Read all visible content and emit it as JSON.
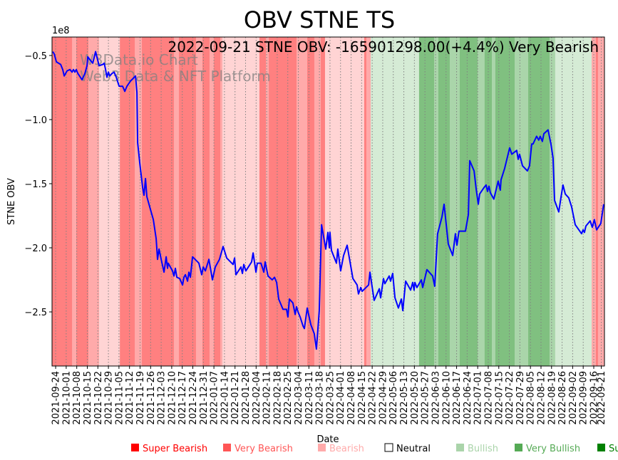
{
  "chart_data": {
    "type": "line",
    "title": "OBV STNE TS",
    "annotation": "2022-09-21 STNE OBV: -165901298.00(+4.4%) Very Bearish",
    "watermark": [
      "W3Data.io Chart",
      "Web3 Data & NFT Platform"
    ],
    "xlabel": "Date",
    "ylabel": "STNE OBV",
    "y_multiplier_label": "1e8",
    "x_units": "days since 2021-09-24",
    "y_units": "1e8",
    "xlim": [
      -2.4,
      364.1
    ],
    "ylim": [
      -2.922,
      -0.356
    ],
    "grid": "vertical dotted at x ticks",
    "yticks": [
      -0.5,
      -1.0,
      -1.5,
      -2.0,
      -2.5
    ],
    "ytick_labels": [
      "−0.5",
      "−1.0",
      "−1.5",
      "−2.0",
      "−2.5"
    ],
    "xticks": [
      0,
      7,
      14,
      21,
      28,
      35,
      42,
      49,
      56,
      63,
      70,
      77,
      84,
      91,
      98,
      105,
      112,
      119,
      126,
      133,
      140,
      147,
      154,
      161,
      168,
      175,
      182,
      189,
      196,
      203,
      210,
      217,
      224,
      231,
      238,
      245,
      252,
      259,
      266,
      273,
      280,
      287,
      294,
      301,
      308,
      315,
      322,
      329,
      336,
      343,
      350,
      357,
      362
    ],
    "xtick_labels": [
      "2021-09-24",
      "2021-10-01",
      "2021-10-08",
      "2021-10-15",
      "2021-10-22",
      "2021-10-29",
      "2021-11-05",
      "2021-11-12",
      "2021-11-19",
      "2021-11-26",
      "2021-12-03",
      "2021-12-10",
      "2021-12-17",
      "2021-12-24",
      "2021-12-31",
      "2022-01-07",
      "2022-01-14",
      "2022-01-21",
      "2022-01-28",
      "2022-02-04",
      "2022-02-11",
      "2022-02-18",
      "2022-02-25",
      "2022-03-04",
      "2022-03-11",
      "2022-03-18",
      "2022-03-25",
      "2022-04-01",
      "2022-04-08",
      "2022-04-15",
      "2022-04-22",
      "2022-04-29",
      "2022-05-06",
      "2022-05-13",
      "2022-05-20",
      "2022-05-27",
      "2022-06-03",
      "2022-06-10",
      "2022-06-17",
      "2022-06-24",
      "2022-07-01",
      "2022-07-08",
      "2022-07-15",
      "2022-07-22",
      "2022-07-29",
      "2022-08-05",
      "2022-08-12",
      "2022-08-19",
      "2022-08-26",
      "2022-09-02",
      "2022-09-09",
      "2022-09-16",
      "2022-09-21"
    ],
    "series": [
      {
        "name": "STNE OBV",
        "color": "#0000ff",
        "points": [
          [
            -1.9,
            -0.47
          ],
          [
            -0.9,
            -0.49
          ],
          [
            0.5,
            -0.55
          ],
          [
            3.3,
            -0.57
          ],
          [
            4.7,
            -0.61
          ],
          [
            5.7,
            -0.66
          ],
          [
            7.6,
            -0.62
          ],
          [
            9.5,
            -0.61
          ],
          [
            10.9,
            -0.63
          ],
          [
            11.8,
            -0.61
          ],
          [
            12.8,
            -0.63
          ],
          [
            13.7,
            -0.61
          ],
          [
            14.7,
            -0.64
          ],
          [
            17.5,
            -0.69
          ],
          [
            19.4,
            -0.64
          ],
          [
            20.8,
            -0.58
          ],
          [
            21.3,
            -0.51
          ],
          [
            23.2,
            -0.54
          ],
          [
            24.6,
            -0.56
          ],
          [
            26.5,
            -0.47
          ],
          [
            28.8,
            -0.58
          ],
          [
            31.2,
            -0.57
          ],
          [
            32.2,
            -0.56
          ],
          [
            33.1,
            -0.61
          ],
          [
            34.0,
            -0.67
          ],
          [
            35.0,
            -0.63
          ],
          [
            35.9,
            -0.66
          ],
          [
            37.4,
            -0.64
          ],
          [
            38.8,
            -0.63
          ],
          [
            40.2,
            -0.67
          ],
          [
            42.1,
            -0.74
          ],
          [
            44.4,
            -0.74
          ],
          [
            45.9,
            -0.78
          ],
          [
            47.3,
            -0.74
          ],
          [
            49.6,
            -0.7
          ],
          [
            53.0,
            -0.66
          ],
          [
            53.9,
            -0.79
          ],
          [
            54.4,
            -1.18
          ],
          [
            55.8,
            -1.34
          ],
          [
            56.7,
            -1.43
          ],
          [
            57.7,
            -1.53
          ],
          [
            58.6,
            -1.59
          ],
          [
            59.6,
            -1.46
          ],
          [
            60.5,
            -1.6
          ],
          [
            62.4,
            -1.68
          ],
          [
            64.8,
            -1.78
          ],
          [
            66.7,
            -1.93
          ],
          [
            67.6,
            -2.09
          ],
          [
            68.6,
            -2.01
          ],
          [
            70.0,
            -2.09
          ],
          [
            71.9,
            -2.19
          ],
          [
            73.3,
            -2.07
          ],
          [
            74.2,
            -2.16
          ],
          [
            74.7,
            -2.12
          ],
          [
            77.5,
            -2.18
          ],
          [
            78.5,
            -2.22
          ],
          [
            79.4,
            -2.16
          ],
          [
            80.4,
            -2.23
          ],
          [
            82.3,
            -2.24
          ],
          [
            84.2,
            -2.29
          ],
          [
            85.1,
            -2.23
          ],
          [
            86.1,
            -2.21
          ],
          [
            87.5,
            -2.26
          ],
          [
            88.4,
            -2.19
          ],
          [
            89.4,
            -2.23
          ],
          [
            90.8,
            -2.07
          ],
          [
            95.0,
            -2.12
          ],
          [
            96.9,
            -2.21
          ],
          [
            97.9,
            -2.15
          ],
          [
            99.3,
            -2.18
          ],
          [
            101.7,
            -2.09
          ],
          [
            104.0,
            -2.25
          ],
          [
            105.9,
            -2.15
          ],
          [
            108.7,
            -2.09
          ],
          [
            111.1,
            -1.99
          ],
          [
            113.5,
            -2.08
          ],
          [
            117.7,
            -2.13
          ],
          [
            118.7,
            -2.08
          ],
          [
            119.6,
            -2.21
          ],
          [
            122.9,
            -2.15
          ],
          [
            123.9,
            -2.2
          ],
          [
            124.8,
            -2.13
          ],
          [
            126.2,
            -2.18
          ],
          [
            130.0,
            -2.11
          ],
          [
            131.0,
            -2.04
          ],
          [
            132.9,
            -2.19
          ],
          [
            133.8,
            -2.12
          ],
          [
            136.2,
            -2.12
          ],
          [
            138.1,
            -2.19
          ],
          [
            139.0,
            -2.11
          ],
          [
            140.9,
            -2.22
          ],
          [
            143.7,
            -2.25
          ],
          [
            145.2,
            -2.23
          ],
          [
            146.6,
            -2.27
          ],
          [
            148.0,
            -2.4
          ],
          [
            150.8,
            -2.48
          ],
          [
            153.2,
            -2.48
          ],
          [
            154.1,
            -2.54
          ],
          [
            155.1,
            -2.4
          ],
          [
            157.4,
            -2.43
          ],
          [
            158.9,
            -2.52
          ],
          [
            159.8,
            -2.46
          ],
          [
            160.8,
            -2.5
          ],
          [
            162.2,
            -2.54
          ],
          [
            164.1,
            -2.61
          ],
          [
            165.0,
            -2.63
          ],
          [
            166.9,
            -2.47
          ],
          [
            169.3,
            -2.6
          ],
          [
            171.6,
            -2.67
          ],
          [
            173.0,
            -2.79
          ],
          [
            174.9,
            -2.49
          ],
          [
            176.4,
            -1.82
          ],
          [
            179.2,
            -2.01
          ],
          [
            180.6,
            -1.88
          ],
          [
            181.6,
            -2.0
          ],
          [
            182.0,
            -1.88
          ],
          [
            183.0,
            -2.02
          ],
          [
            186.3,
            -2.12
          ],
          [
            187.2,
            -2.01
          ],
          [
            189.1,
            -2.18
          ],
          [
            191.0,
            -2.06
          ],
          [
            193.4,
            -1.98
          ],
          [
            197.2,
            -2.24
          ],
          [
            200.0,
            -2.29
          ],
          [
            200.9,
            -2.36
          ],
          [
            202.4,
            -2.31
          ],
          [
            203.3,
            -2.34
          ],
          [
            207.6,
            -2.29
          ],
          [
            208.5,
            -2.19
          ],
          [
            211.3,
            -2.41
          ],
          [
            214.7,
            -2.32
          ],
          [
            215.6,
            -2.39
          ],
          [
            217.5,
            -2.24
          ],
          [
            218.4,
            -2.28
          ],
          [
            221.3,
            -2.22
          ],
          [
            222.2,
            -2.26
          ],
          [
            223.6,
            -2.2
          ],
          [
            225.1,
            -2.39
          ],
          [
            227.4,
            -2.47
          ],
          [
            229.3,
            -2.4
          ],
          [
            230.3,
            -2.49
          ],
          [
            232.2,
            -2.26
          ],
          [
            235.5,
            -2.33
          ],
          [
            236.9,
            -2.27
          ],
          [
            237.8,
            -2.33
          ],
          [
            238.3,
            -2.27
          ],
          [
            239.7,
            -2.31
          ],
          [
            242.6,
            -2.25
          ],
          [
            243.5,
            -2.31
          ],
          [
            246.3,
            -2.17
          ],
          [
            250.1,
            -2.22
          ],
          [
            251.5,
            -2.3
          ],
          [
            253.4,
            -1.89
          ],
          [
            256.3,
            -1.76
          ],
          [
            257.7,
            -1.66
          ],
          [
            260.5,
            -1.97
          ],
          [
            263.4,
            -2.06
          ],
          [
            265.2,
            -1.89
          ],
          [
            266.2,
            -1.98
          ],
          [
            267.6,
            -1.87
          ],
          [
            271.9,
            -1.87
          ],
          [
            273.8,
            -1.74
          ],
          [
            274.7,
            -1.32
          ],
          [
            277.6,
            -1.4
          ],
          [
            279.0,
            -1.54
          ],
          [
            280.4,
            -1.66
          ],
          [
            281.3,
            -1.58
          ],
          [
            284.2,
            -1.53
          ],
          [
            285.6,
            -1.51
          ],
          [
            286.5,
            -1.56
          ],
          [
            287.5,
            -1.52
          ],
          [
            288.4,
            -1.57
          ],
          [
            290.7,
            -1.62
          ],
          [
            293.6,
            -1.48
          ],
          [
            295.0,
            -1.55
          ],
          [
            295.5,
            -1.47
          ],
          [
            297.9,
            -1.38
          ],
          [
            301.2,
            -1.22
          ],
          [
            302.6,
            -1.27
          ],
          [
            305.9,
            -1.24
          ],
          [
            306.9,
            -1.31
          ],
          [
            307.8,
            -1.27
          ],
          [
            309.7,
            -1.36
          ],
          [
            313.0,
            -1.4
          ],
          [
            314.4,
            -1.36
          ],
          [
            315.8,
            -1.19
          ],
          [
            316.7,
            -1.19
          ],
          [
            319.1,
            -1.13
          ],
          [
            320.5,
            -1.16
          ],
          [
            321.5,
            -1.13
          ],
          [
            322.9,
            -1.17
          ],
          [
            323.9,
            -1.11
          ],
          [
            326.7,
            -1.08
          ],
          [
            328.6,
            -1.19
          ],
          [
            330.0,
            -1.3
          ],
          [
            331.0,
            -1.63
          ],
          [
            333.8,
            -1.72
          ],
          [
            335.2,
            -1.61
          ],
          [
            336.6,
            -1.51
          ],
          [
            338.1,
            -1.58
          ],
          [
            340.4,
            -1.61
          ],
          [
            342.3,
            -1.68
          ],
          [
            344.7,
            -1.82
          ],
          [
            348.9,
            -1.89
          ],
          [
            349.9,
            -1.86
          ],
          [
            350.8,
            -1.88
          ],
          [
            351.8,
            -1.83
          ],
          [
            354.6,
            -1.79
          ],
          [
            356.0,
            -1.84
          ],
          [
            357.4,
            -1.78
          ],
          [
            358.9,
            -1.86
          ],
          [
            361.7,
            -1.81
          ],
          [
            363.6,
            -1.66
          ]
        ]
      }
    ],
    "band_colors": {
      "vbear": "#ff8080",
      "bear": "#ffaaaa",
      "lbear": "#ffd4d4",
      "lbull": "#d5ebd5",
      "bull": "#aad5aa",
      "vbull": "#80c080"
    },
    "bands": [
      [
        -2.4,
        10.9,
        "vbear"
      ],
      [
        10.9,
        13.7,
        "bear"
      ],
      [
        13.7,
        21.7,
        "vbear"
      ],
      [
        21.7,
        28.8,
        "bear"
      ],
      [
        28.8,
        42.6,
        "lbear"
      ],
      [
        42.6,
        52.5,
        "vbear"
      ],
      [
        52.5,
        57.2,
        "bear"
      ],
      [
        57.2,
        78.5,
        "vbear"
      ],
      [
        78.5,
        81.8,
        "bear"
      ],
      [
        81.8,
        93.1,
        "vbear"
      ],
      [
        93.1,
        97.4,
        "bear"
      ],
      [
        97.4,
        102.1,
        "vbear"
      ],
      [
        102.1,
        105,
        "bear"
      ],
      [
        105,
        109.2,
        "vbear"
      ],
      [
        109.2,
        110.6,
        "bear"
      ],
      [
        110.6,
        135.2,
        "lbear"
      ],
      [
        135.2,
        139.5,
        "vbear"
      ],
      [
        139.5,
        141.4,
        "bear"
      ],
      [
        141.4,
        159.8,
        "vbear"
      ],
      [
        159.8,
        166.9,
        "bear"
      ],
      [
        166.9,
        171.6,
        "vbear"
      ],
      [
        171.6,
        175.9,
        "bear"
      ],
      [
        175.9,
        178.7,
        "vbear"
      ],
      [
        178.7,
        204.7,
        "lbear"
      ],
      [
        204.7,
        206.1,
        "vbear"
      ],
      [
        206.1,
        209,
        "bear"
      ],
      [
        209,
        241.1,
        "lbull"
      ],
      [
        241.1,
        251.1,
        "vbull"
      ],
      [
        251.1,
        253.9,
        "bull"
      ],
      [
        253.9,
        261.5,
        "vbull"
      ],
      [
        261.5,
        268.1,
        "bull"
      ],
      [
        268.1,
        279.9,
        "vbull"
      ],
      [
        279.9,
        284.6,
        "bull"
      ],
      [
        284.6,
        289.4,
        "vbull"
      ],
      [
        289.4,
        291.7,
        "bull"
      ],
      [
        291.7,
        304.5,
        "vbull"
      ],
      [
        304.5,
        313.5,
        "bull"
      ],
      [
        313.5,
        327.7,
        "vbull"
      ],
      [
        327.7,
        331.4,
        "bull"
      ],
      [
        331.4,
        355.6,
        "lbull"
      ],
      [
        355.6,
        358.4,
        "bear"
      ],
      [
        358.4,
        359.8,
        "vbear"
      ],
      [
        359.8,
        364.1,
        "bear"
      ]
    ],
    "legend": {
      "placement": "bottom",
      "entries": [
        {
          "label": "Super Bearish",
          "color": "#ff0000",
          "text_color": "#ff0000"
        },
        {
          "label": "Very Bearish",
          "color": "#ff5555",
          "text_color": "#ff5555"
        },
        {
          "label": "Bearish",
          "color": "#ffaaaa",
          "text_color": "#ffaaaa"
        },
        {
          "label": "Neutral",
          "color": "none",
          "text_color": "#000000"
        },
        {
          "label": "Bullish",
          "color": "#aad4aa",
          "text_color": "#aad4aa"
        },
        {
          "label": "Very Bullish",
          "color": "#55aa55",
          "text_color": "#55aa55"
        },
        {
          "label": "Super Bullish",
          "color": "#008000",
          "text_color": "#008000"
        }
      ]
    }
  }
}
